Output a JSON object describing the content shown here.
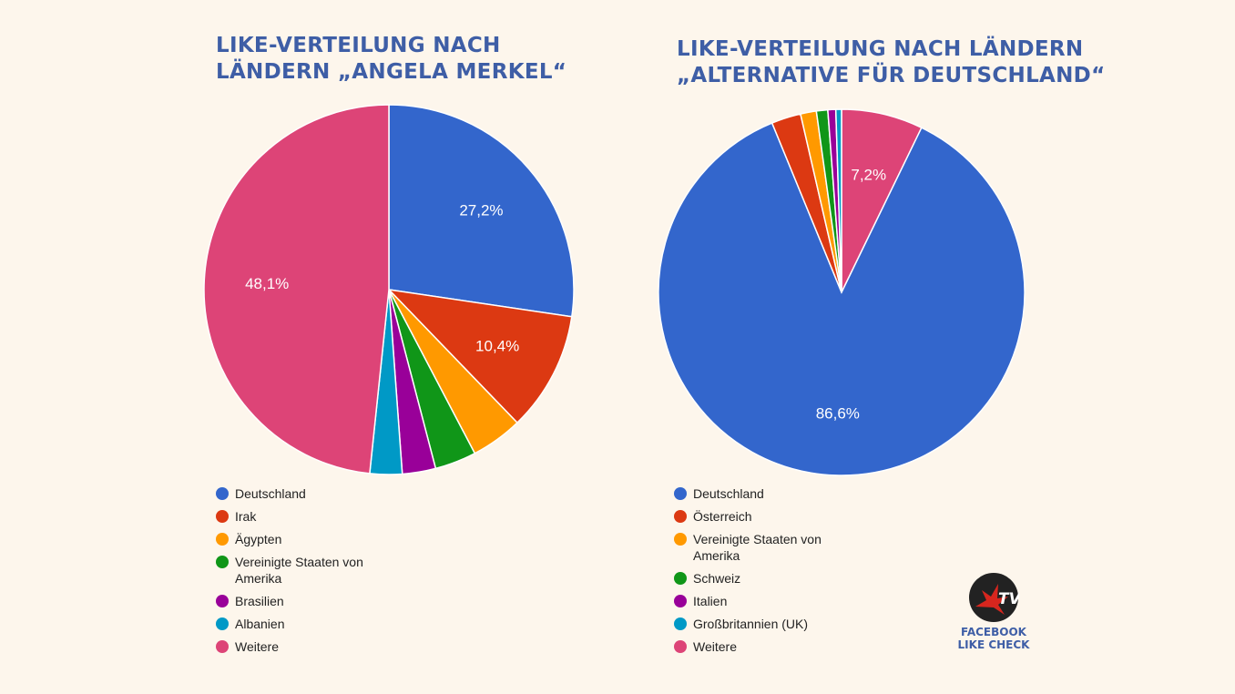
{
  "logo": {
    "brand": "TV",
    "line1": "FACEBOOK",
    "line2": "LIKE CHECK"
  },
  "chart_data": [
    {
      "type": "pie",
      "title": [
        "LIKE-VERTEILUNG NACH",
        "LÄNDERN „ANGELA MERKEL“"
      ],
      "legend_position": "bottom",
      "slices": [
        {
          "label": "Deutschland",
          "value": 27.2,
          "display": "27,2%",
          "color": "#3366cc"
        },
        {
          "label": "Irak",
          "value": 10.4,
          "display": "10,4%",
          "color": "#dc3912"
        },
        {
          "label": "Ägypten",
          "value": 4.5,
          "display": "",
          "color": "#ff9900"
        },
        {
          "label": "Vereinigte Staaten von Amerika",
          "value": 3.6,
          "display": "",
          "color": "#109618"
        },
        {
          "label": "Brasilien",
          "value": 2.9,
          "display": "",
          "color": "#990099"
        },
        {
          "label": "Albanien",
          "value": 2.8,
          "display": "",
          "color": "#0099c6"
        },
        {
          "label": "Weitere",
          "value": 48.1,
          "display": "48,1%",
          "color": "#dd4477"
        }
      ]
    },
    {
      "type": "pie",
      "title": [
        "LIKE-VERTEILUNG NACH LÄNDERN",
        "„ALTERNATIVE FÜR DEUTSCHLAND“"
      ],
      "legend_position": "bottom",
      "slices": [
        {
          "label": "Weitere",
          "value": 7.2,
          "display": "7,2%",
          "color": "#dd4477"
        },
        {
          "label": "Deutschland",
          "value": 86.6,
          "display": "86,6%",
          "color": "#3366cc"
        },
        {
          "label": "Österreich",
          "value": 2.6,
          "display": "",
          "color": "#dc3912"
        },
        {
          "label": "Vereinigte Staaten von Amerika",
          "value": 1.4,
          "display": "",
          "color": "#ff9900"
        },
        {
          "label": "Schweiz",
          "value": 1.0,
          "display": "",
          "color": "#109618"
        },
        {
          "label": "Italien",
          "value": 0.7,
          "display": "",
          "color": "#990099"
        },
        {
          "label": "Großbritannien (UK)",
          "value": 0.5,
          "display": "",
          "color": "#0099c6"
        }
      ],
      "legend_order": [
        "Deutschland",
        "Österreich",
        "Vereinigte Staaten von Amerika",
        "Schweiz",
        "Italien",
        "Großbritannien (UK)",
        "Weitere"
      ]
    }
  ]
}
